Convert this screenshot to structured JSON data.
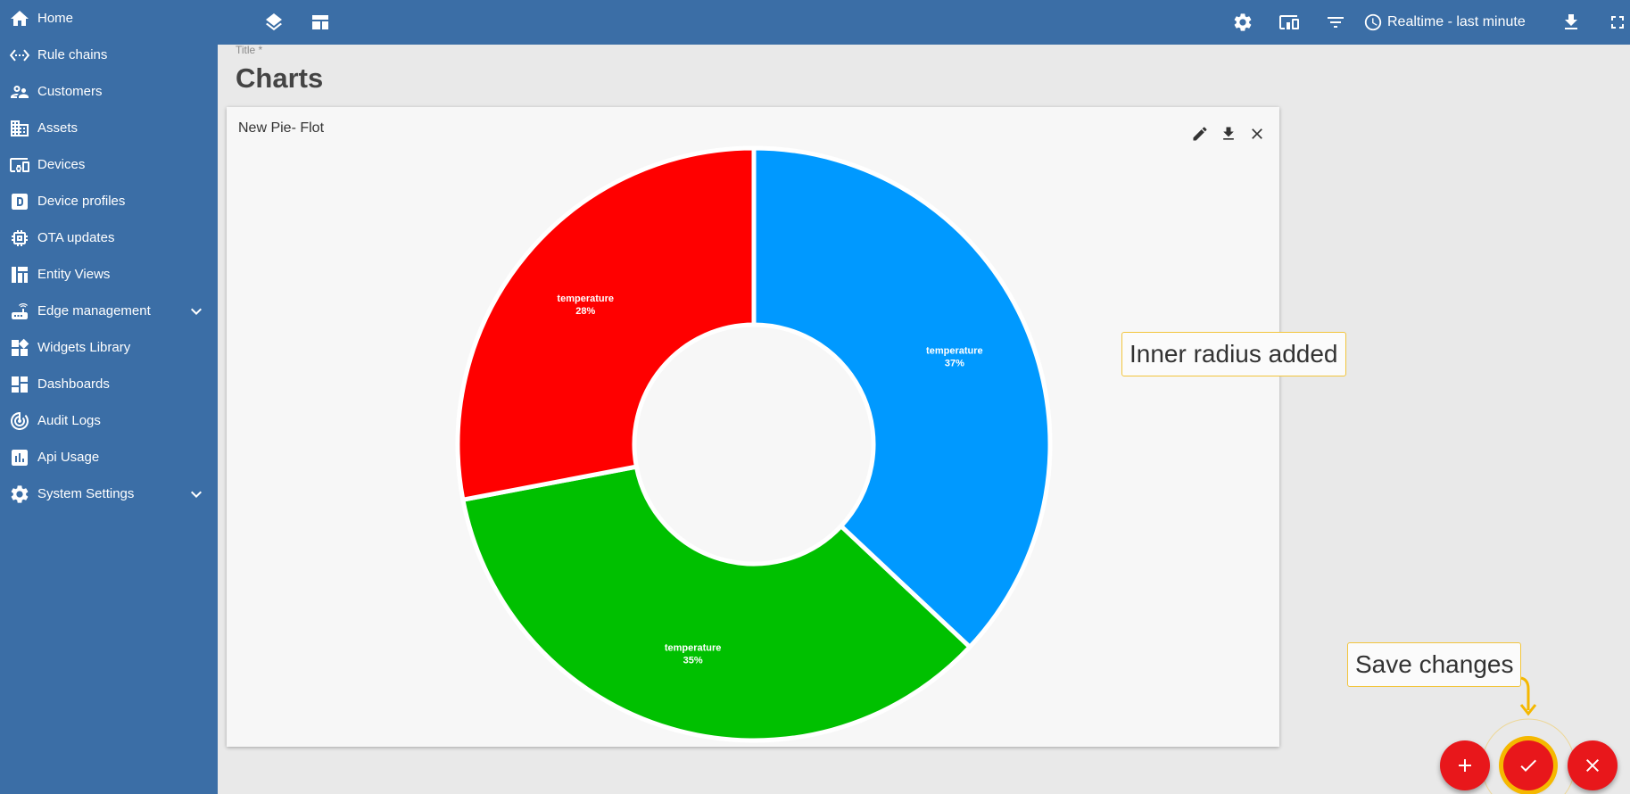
{
  "sidebar": {
    "items": [
      {
        "label": "Home",
        "icon": "home-icon"
      },
      {
        "label": "Rule chains",
        "icon": "settings-ethernet-icon"
      },
      {
        "label": "Customers",
        "icon": "supervisor-account-icon"
      },
      {
        "label": "Assets",
        "icon": "domain-icon"
      },
      {
        "label": "Devices",
        "icon": "devices-other-icon"
      },
      {
        "label": "Device profiles",
        "icon": "device-profile-icon"
      },
      {
        "label": "OTA updates",
        "icon": "memory-icon"
      },
      {
        "label": "Entity Views",
        "icon": "view-quilt-icon"
      },
      {
        "label": "Edge management",
        "icon": "router-icon"
      },
      {
        "label": "Widgets Library",
        "icon": "widgets-icon"
      },
      {
        "label": "Dashboards",
        "icon": "dashboards-icon"
      },
      {
        "label": "Audit Logs",
        "icon": "track-changes-icon"
      },
      {
        "label": "Api Usage",
        "icon": "insert-chart-icon"
      },
      {
        "label": "System Settings",
        "icon": "settings-icon"
      }
    ]
  },
  "toolbar": {
    "timewindow_label": "Realtime - last minute"
  },
  "dashboard": {
    "title_label": "Title *",
    "title": "Charts"
  },
  "widget": {
    "title": "New Pie- Flot"
  },
  "chart_data": {
    "type": "pie",
    "donut": true,
    "slices": [
      {
        "label": "temperature",
        "percent": 37,
        "color": "#0099ff"
      },
      {
        "label": "temperature",
        "percent": 35,
        "color": "#00c000"
      },
      {
        "label": "temperature",
        "percent": 28,
        "color": "#ff0000"
      }
    ]
  },
  "annotations": {
    "inner_radius": "Inner radius added",
    "save_changes": "Save changes"
  },
  "colors": {
    "primary": "#3b6ea6",
    "accent": "#e8171b",
    "highlight": "#f5b800"
  }
}
